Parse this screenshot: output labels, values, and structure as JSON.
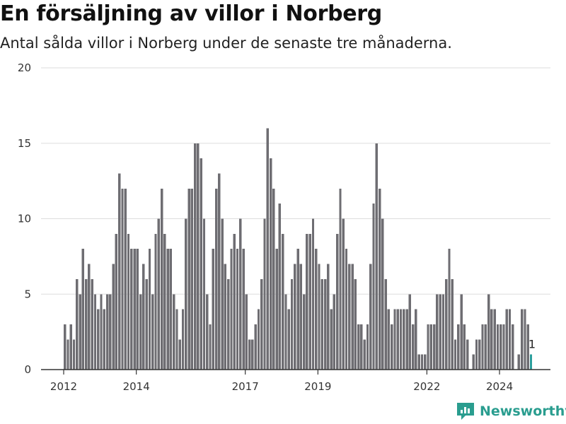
{
  "title": "En försäljning av villor i Norberg",
  "subtitle": "Antal sålda villor i Norberg under de senaste tre månaderna.",
  "brand": "Newsworthy",
  "colors": {
    "bar": "#6e6d72",
    "highlight": "#2a9d9b",
    "grid": "#dddddd",
    "brand": "#2a9d8f"
  },
  "chart_data": {
    "type": "bar",
    "title": "En försäljning av villor i Norberg",
    "subtitle": "Antal sålda villor i Norberg under de senaste tre månaderna.",
    "xlabel": "",
    "ylabel": "",
    "ylim": [
      0,
      20
    ],
    "yticks": [
      0,
      5,
      10,
      15,
      20
    ],
    "xticks": [
      2012,
      2014,
      2017,
      2019,
      2022,
      2024
    ],
    "start": "2012-01",
    "frequency": "monthly",
    "grid": true,
    "last_value_label": "1",
    "values": [
      3,
      2,
      3,
      2,
      6,
      5,
      8,
      6,
      7,
      6,
      5,
      4,
      5,
      4,
      5,
      5,
      7,
      9,
      13,
      12,
      12,
      9,
      8,
      8,
      8,
      5,
      7,
      6,
      8,
      5,
      9,
      10,
      12,
      9,
      8,
      8,
      5,
      4,
      2,
      4,
      10,
      12,
      12,
      15,
      15,
      14,
      10,
      5,
      3,
      8,
      12,
      13,
      10,
      7,
      6,
      8,
      9,
      8,
      10,
      8,
      5,
      2,
      2,
      3,
      4,
      6,
      10,
      16,
      14,
      12,
      8,
      11,
      9,
      5,
      4,
      6,
      7,
      8,
      7,
      5,
      9,
      9,
      10,
      8,
      7,
      6,
      6,
      7,
      4,
      5,
      9,
      12,
      10,
      8,
      7,
      7,
      6,
      3,
      3,
      2,
      3,
      7,
      11,
      15,
      12,
      10,
      6,
      4,
      3,
      4,
      4,
      4,
      4,
      4,
      5,
      3,
      4,
      1,
      1,
      1,
      3,
      3,
      3,
      5,
      5,
      5,
      6,
      8,
      6,
      2,
      3,
      5,
      3,
      2,
      0,
      1,
      2,
      2,
      3,
      3,
      5,
      4,
      4,
      3,
      3,
      3,
      4,
      4,
      3,
      0,
      1,
      4,
      4,
      3,
      1
    ]
  }
}
